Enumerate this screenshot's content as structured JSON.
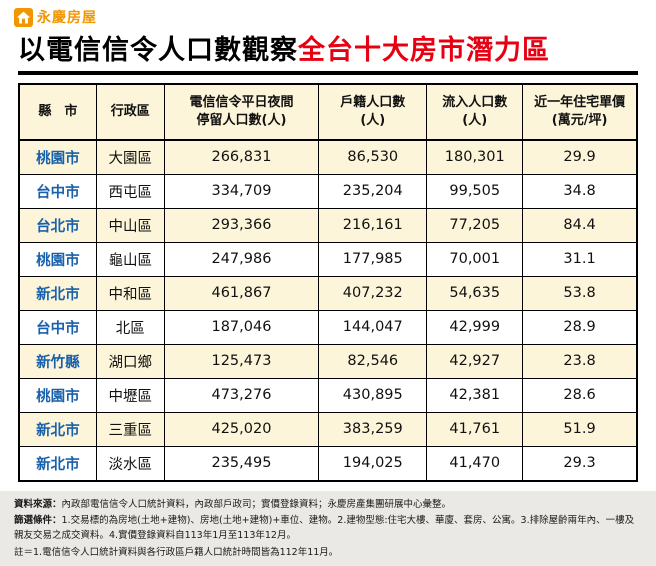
{
  "brand": {
    "logo_text": "永慶房屋"
  },
  "title": {
    "black": "以電信信令人口數觀察",
    "red": "全台十大房市潛力區"
  },
  "table": {
    "headers": [
      "縣　市",
      "行政區",
      "電信信令平日夜間\n停留人口數(人)",
      "戶籍人口數\n(人)",
      "流入人口數\n(人)",
      "近一年住宅單價\n(萬元/坪)"
    ],
    "rows": [
      [
        "桃園市",
        "大園區",
        "266,831",
        "86,530",
        "180,301",
        "29.9"
      ],
      [
        "台中市",
        "西屯區",
        "334,709",
        "235,204",
        "99,505",
        "34.8"
      ],
      [
        "台北市",
        "中山區",
        "293,366",
        "216,161",
        "77,205",
        "84.4"
      ],
      [
        "桃園市",
        "龜山區",
        "247,986",
        "177,985",
        "70,001",
        "31.1"
      ],
      [
        "新北市",
        "中和區",
        "461,867",
        "407,232",
        "54,635",
        "53.8"
      ],
      [
        "台中市",
        "北區",
        "187,046",
        "144,047",
        "42,999",
        "28.9"
      ],
      [
        "新竹縣",
        "湖口鄉",
        "125,473",
        "82,546",
        "42,927",
        "23.8"
      ],
      [
        "桃園市",
        "中壢區",
        "473,276",
        "430,895",
        "42,381",
        "28.6"
      ],
      [
        "新北市",
        "三重區",
        "425,020",
        "383,259",
        "41,761",
        "51.9"
      ],
      [
        "新北市",
        "淡水區",
        "235,495",
        "194,025",
        "41,470",
        "29.3"
      ]
    ]
  },
  "chart_data": {
    "type": "table",
    "title": "以電信信令人口數觀察全台十大房市潛力區",
    "columns": [
      "縣市",
      "行政區",
      "電信信令平日夜間停留人口數(人)",
      "戶籍人口數(人)",
      "流入人口數(人)",
      "近一年住宅單價(萬元/坪)"
    ],
    "rows": [
      {
        "county": "桃園市",
        "district": "大園區",
        "telecom_night_pop": 266831,
        "registered_pop": 86530,
        "inflow_pop": 180301,
        "unit_price": 29.9
      },
      {
        "county": "台中市",
        "district": "西屯區",
        "telecom_night_pop": 334709,
        "registered_pop": 235204,
        "inflow_pop": 99505,
        "unit_price": 34.8
      },
      {
        "county": "台北市",
        "district": "中山區",
        "telecom_night_pop": 293366,
        "registered_pop": 216161,
        "inflow_pop": 77205,
        "unit_price": 84.4
      },
      {
        "county": "桃園市",
        "district": "龜山區",
        "telecom_night_pop": 247986,
        "registered_pop": 177985,
        "inflow_pop": 70001,
        "unit_price": 31.1
      },
      {
        "county": "新北市",
        "district": "中和區",
        "telecom_night_pop": 461867,
        "registered_pop": 407232,
        "inflow_pop": 54635,
        "unit_price": 53.8
      },
      {
        "county": "台中市",
        "district": "北區",
        "telecom_night_pop": 187046,
        "registered_pop": 144047,
        "inflow_pop": 42999,
        "unit_price": 28.9
      },
      {
        "county": "新竹縣",
        "district": "湖口鄉",
        "telecom_night_pop": 125473,
        "registered_pop": 82546,
        "inflow_pop": 42927,
        "unit_price": 23.8
      },
      {
        "county": "桃園市",
        "district": "中壢區",
        "telecom_night_pop": 473276,
        "registered_pop": 430895,
        "inflow_pop": 42381,
        "unit_price": 28.6
      },
      {
        "county": "新北市",
        "district": "三重區",
        "telecom_night_pop": 425020,
        "registered_pop": 383259,
        "inflow_pop": 41761,
        "unit_price": 51.9
      },
      {
        "county": "新北市",
        "district": "淡水區",
        "telecom_night_pop": 235495,
        "registered_pop": 194025,
        "inflow_pop": 41470,
        "unit_price": 29.3
      }
    ]
  },
  "footnotes": {
    "source_label": "資料來源：",
    "source_text": "內政部電信信令人口統計資料，內政部戶政司；實價登錄資料；永慶房產集團研展中心彙整。",
    "filter_label": "篩選條件：",
    "filter_text": "1.交易標的為房地(土地+建物)、房地(土地+建物)+車位、建物。2.建物型態:住宅大樓、華廈、套房、公寓。3.排除屋齡兩年內、一樓及親友交易之成交資料。4.實價登錄資料自113年1月至113年12月。",
    "note_text": "註＝1.電信信令人口統計資料與各行政區戶籍人口統計時間皆為112年11月。"
  },
  "colors": {
    "accent_red": "#e60012",
    "brand_orange": "#f29600",
    "county_blue": "#1961ac",
    "row_cream": "#fdf5d9"
  }
}
